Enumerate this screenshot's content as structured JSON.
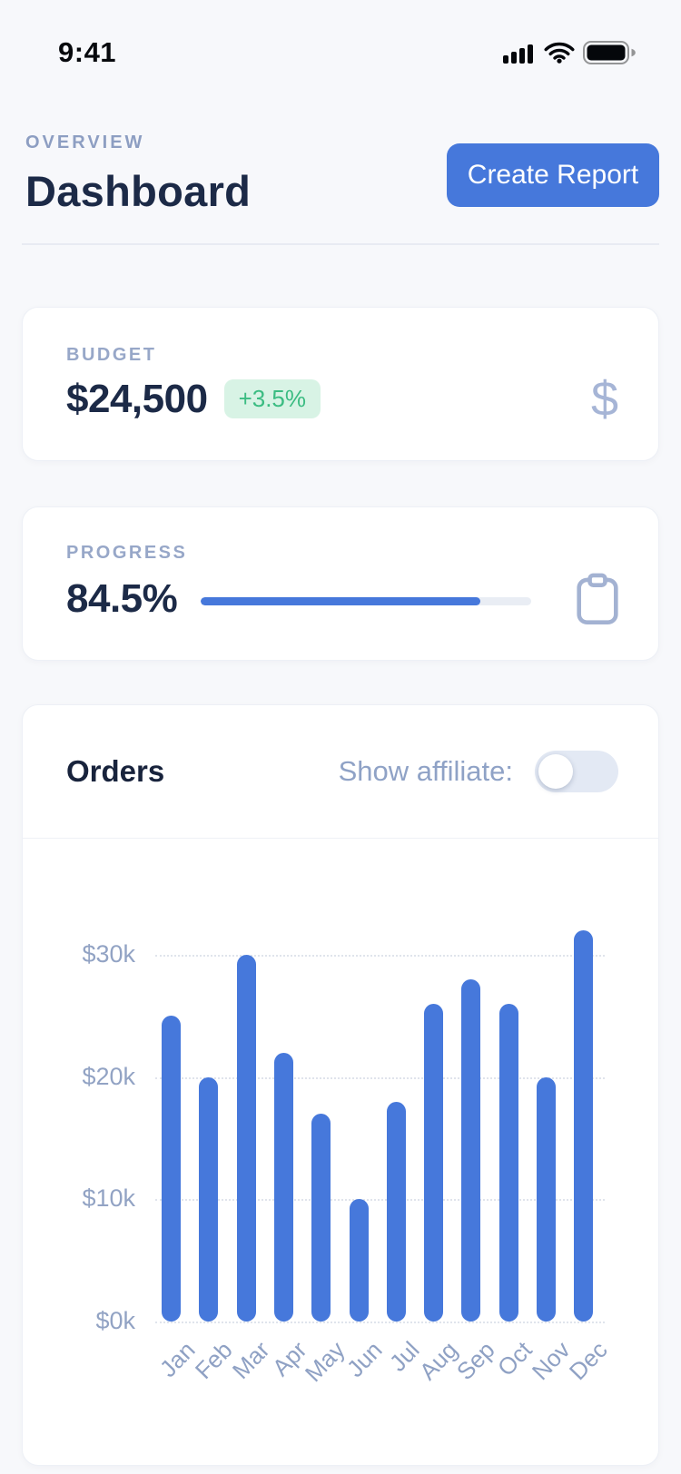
{
  "status_bar": {
    "time": "9:41",
    "icons": [
      "cellular-signal",
      "wifi",
      "battery-full"
    ]
  },
  "header": {
    "eyebrow": "OVERVIEW",
    "title": "Dashboard",
    "create_report_label": "Create Report"
  },
  "cards": {
    "budget": {
      "label": "BUDGET",
      "value": "$24,500",
      "delta_badge": "+3.5%",
      "icon": "dollar-sign"
    },
    "progress": {
      "label": "PROGRESS",
      "value": "84.5%",
      "percent": 84.5,
      "icon": "clipboard"
    },
    "orders": {
      "title": "Orders",
      "affiliate_toggle_label": "Show affiliate:",
      "affiliate_toggle_state": "off"
    }
  },
  "chart_data": {
    "type": "bar",
    "title": "Orders",
    "categories": [
      "Jan",
      "Feb",
      "Mar",
      "Apr",
      "May",
      "Jun",
      "Jul",
      "Aug",
      "Sep",
      "Oct",
      "Nov",
      "Dec"
    ],
    "values": [
      25,
      20,
      30,
      22,
      17,
      10,
      18,
      26,
      28,
      26,
      20,
      32
    ],
    "unit": "thousand USD",
    "xlabel": "",
    "ylabel": "",
    "ylim": [
      0,
      32
    ],
    "yticks": [
      {
        "label": "$30k",
        "value": 30
      },
      {
        "label": "$20k",
        "value": 20
      },
      {
        "label": "$10k",
        "value": 10
      },
      {
        "label": "$0k",
        "value": 0
      }
    ],
    "grid": "horizontal-dotted",
    "legend": "none",
    "bar_color": "#4678DB"
  },
  "colors": {
    "page_bg": "#F7F8FB",
    "card_bg": "#FFFFFF",
    "accent_blue": "#4678DB",
    "navy_text": "#1C2A47",
    "muted_label": "#97A7C8",
    "axis_label": "#92A3C4",
    "badge_green_bg": "#D8F3E5",
    "badge_green_text": "#3BBC82"
  }
}
